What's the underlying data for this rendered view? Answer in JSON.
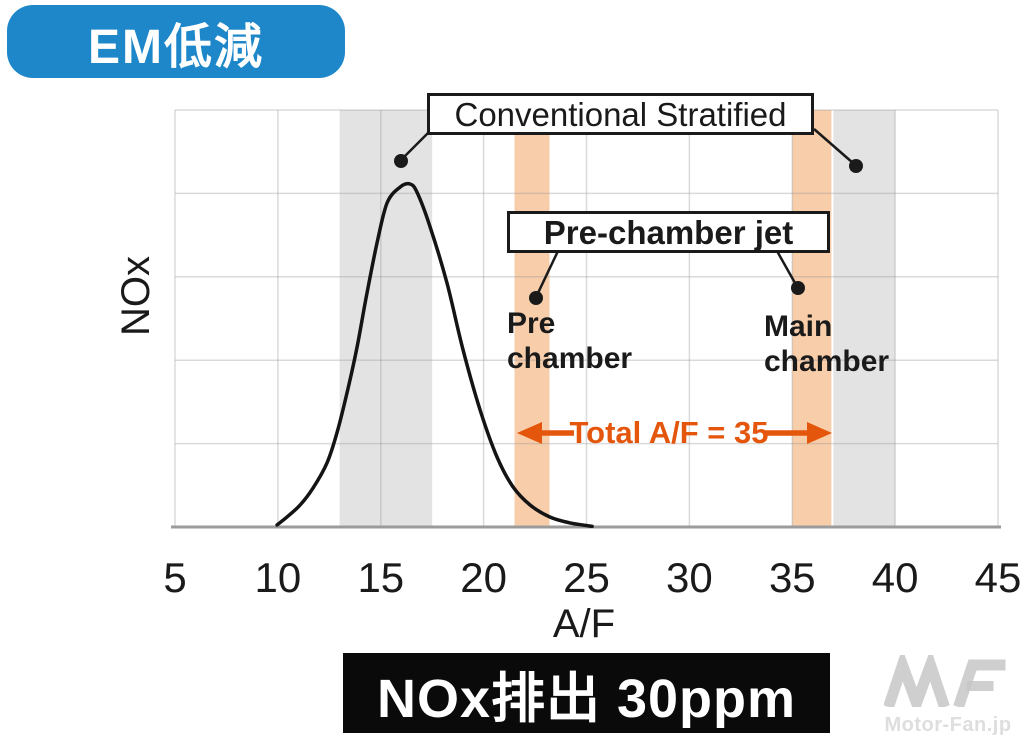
{
  "badge": {
    "label": "EM低減"
  },
  "chart_data": {
    "type": "line",
    "title": "",
    "xlabel": "A/F",
    "ylabel": "NOx",
    "x_ticks": [
      "5",
      "10",
      "15",
      "20",
      "25",
      "30",
      "35",
      "40",
      "45"
    ],
    "xlim": [
      5,
      45
    ],
    "x_gridline_step": 5,
    "y_gridline_count": 5,
    "grid": true,
    "y_axis_unlabeled": true,
    "legend": "none",
    "series": [
      {
        "name": "NOx vs A/F",
        "x": [
          9.96,
          10.44,
          11.08,
          11.71,
          12.39,
          12.87,
          13.36,
          13.85,
          14.33,
          14.82,
          15.31,
          15.94,
          16.42,
          16.77,
          17.4,
          18.22,
          19.0,
          19.83,
          20.65,
          21.43,
          22.26,
          23.23,
          24.2,
          25.27
        ],
        "y": [
          0.006,
          0.029,
          0.064,
          0.114,
          0.187,
          0.274,
          0.391,
          0.525,
          0.682,
          0.828,
          0.945,
          0.991,
          1.0,
          0.975,
          0.875,
          0.711,
          0.516,
          0.341,
          0.204,
          0.117,
          0.064,
          0.029,
          0.012,
          0.002
        ],
        "peak_af": 16.4
      }
    ],
    "bands": [
      {
        "name": "conventional-rich-band",
        "type": "gray",
        "from": 13,
        "to": 17.5
      },
      {
        "name": "pre-chamber-af-band",
        "type": "orange",
        "from": 21.5,
        "to": 23.2
      },
      {
        "name": "main-chamber-af-band",
        "type": "orange",
        "from": 35,
        "to": 36.9
      },
      {
        "name": "stratified-lean-band",
        "type": "gray",
        "from": 37,
        "to": 40
      }
    ],
    "annotations": {
      "conventional_label": "Conventional Stratified",
      "prechamber_jet_label": "Pre-chamber jet",
      "pre_chamber": {
        "line1": "Pre",
        "line2": "chamber"
      },
      "main_chamber": {
        "line1": "Main",
        "line2": "chamber"
      },
      "total_af": "Total A/F = 35"
    }
  },
  "footer": {
    "result": "NOx排出 30ppm"
  },
  "watermark": {
    "logo": "MF",
    "text": "Motor-Fan.jp"
  },
  "colors": {
    "badge_blue": "#1d87c9",
    "band_gray": "#e3e3e3",
    "band_orange": "#f8cda9",
    "accent_orange": "#e4560c",
    "curve_black": "#141414",
    "footer_black": "#0a0a0a",
    "gridline": "rgba(150,150,150,0.35)",
    "axis_gray": "#9b9b9b",
    "watermark_gray": "#c7c7c7"
  }
}
